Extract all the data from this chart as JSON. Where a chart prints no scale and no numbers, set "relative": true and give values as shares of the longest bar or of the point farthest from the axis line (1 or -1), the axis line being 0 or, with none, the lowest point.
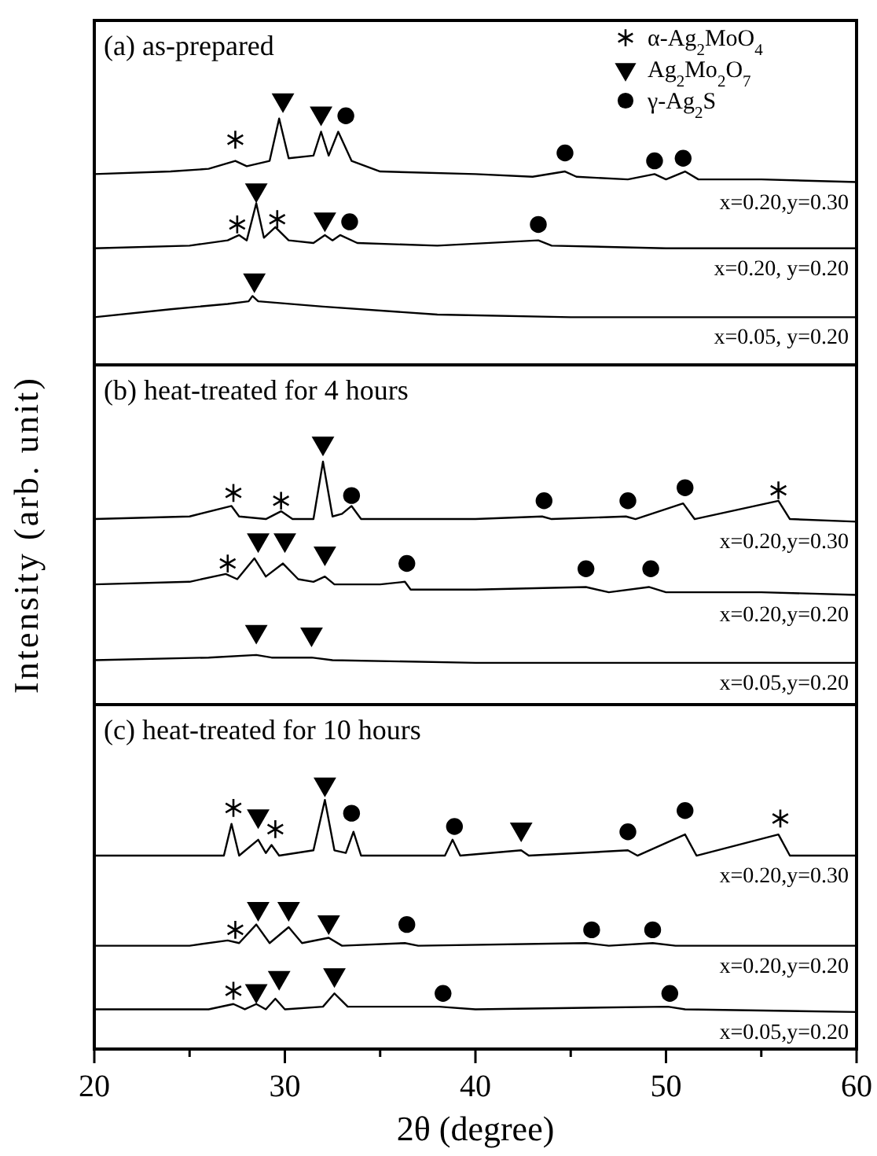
{
  "chart_data": [
    {
      "type": "line",
      "title": "(a) as-prepared",
      "relative": true,
      "xlim": [
        20,
        60
      ],
      "legend": "top right",
      "series": [
        {
          "name": "x=0.20,y=0.30",
          "color": "#000000",
          "x": [
            20,
            24,
            26,
            27.4,
            28,
            29.2,
            29.7,
            30.2,
            31.5,
            31.9,
            32.3,
            32.8,
            33.5,
            35,
            40,
            43,
            44.7,
            45.3,
            48,
            49.4,
            50,
            51,
            51.7,
            55,
            60
          ],
          "values": [
            0.72,
            0.73,
            0.74,
            0.77,
            0.75,
            0.77,
            0.93,
            0.78,
            0.79,
            0.88,
            0.79,
            0.88,
            0.77,
            0.73,
            0.72,
            0.71,
            0.73,
            0.71,
            0.7,
            0.72,
            0.7,
            0.73,
            0.7,
            0.7,
            0.69
          ]
        },
        {
          "name": "x=0.20, y=0.20",
          "color": "#000000",
          "x": [
            20,
            25,
            27,
            27.6,
            28,
            28.5,
            28.9,
            29.5,
            30.2,
            31.5,
            32.1,
            32.5,
            32.9,
            33.8,
            38,
            43.3,
            44,
            50,
            60
          ],
          "values": [
            0.44,
            0.45,
            0.47,
            0.49,
            0.47,
            0.61,
            0.48,
            0.52,
            0.47,
            0.46,
            0.49,
            0.47,
            0.49,
            0.46,
            0.45,
            0.47,
            0.45,
            0.44,
            0.44
          ]
        },
        {
          "name": "x=0.05, y=0.20",
          "color": "#000000",
          "x": [
            20,
            24,
            27,
            28.1,
            28.3,
            28.6,
            32,
            38,
            45,
            60
          ],
          "values": [
            0.18,
            0.21,
            0.23,
            0.24,
            0.26,
            0.24,
            0.22,
            0.19,
            0.18,
            0.18
          ]
        },
        {
          "name": "α-Ag$_{2}$MoO$_{4}$",
          "type": "scatter",
          "color": "#000000",
          "marker": "cross",
          "x": [
            27.4,
            27.5,
            29.6
          ],
          "values": [
            0.85,
            0.53,
            0.55
          ]
        },
        {
          "name": "Ag$_{2}$Mo$_{2}$O$_{7}$",
          "type": "scatter",
          "color": "#000000",
          "marker": "triangle",
          "x": [
            29.9,
            31.9,
            28.5,
            32.1,
            28.4
          ],
          "values": [
            1.0,
            0.95,
            0.66,
            0.55,
            0.32
          ]
        },
        {
          "name": "γ-Ag$_{2}$S",
          "type": "scatter",
          "color": "#000000",
          "marker": "circle",
          "x": [
            33.2,
            44.7,
            49.4,
            50.9,
            33.4,
            43.3
          ],
          "values": [
            0.94,
            0.8,
            0.77,
            0.78,
            0.54,
            0.53
          ]
        }
      ]
    },
    {
      "type": "line",
      "title": "(b) heat-treated for 4 hours",
      "ylabel": "Intensity (arb. unit)",
      "relative": true,
      "xlim": [
        20,
        60
      ],
      "series": [
        {
          "name": "x=0.20,y=0.30",
          "color": "#000000",
          "x": [
            20,
            25,
            27.2,
            27.6,
            29.0,
            29.8,
            30.4,
            31.5,
            32.0,
            32.5,
            33,
            33.5,
            34,
            40,
            43.5,
            44,
            47.9,
            48.4,
            50.9,
            51.5,
            55.9,
            56.5,
            60
          ],
          "values": [
            0.71,
            0.72,
            0.76,
            0.72,
            0.71,
            0.74,
            0.71,
            0.71,
            0.93,
            0.72,
            0.73,
            0.76,
            0.71,
            0.71,
            0.72,
            0.71,
            0.72,
            0.71,
            0.77,
            0.71,
            0.78,
            0.71,
            0.7
          ]
        },
        {
          "name": "x=0.20,y=0.20",
          "color": "#000000",
          "x": [
            20,
            25,
            26.9,
            27.5,
            28.4,
            29.0,
            29.9,
            30.7,
            31.5,
            32.1,
            32.6,
            35,
            36.3,
            36.6,
            40,
            45.8,
            47,
            49.1,
            50,
            55,
            60
          ],
          "values": [
            0.46,
            0.47,
            0.5,
            0.48,
            0.56,
            0.49,
            0.54,
            0.48,
            0.47,
            0.49,
            0.46,
            0.46,
            0.47,
            0.44,
            0.44,
            0.45,
            0.43,
            0.45,
            0.43,
            0.43,
            0.42
          ]
        },
        {
          "name": "x=0.05,y=0.20",
          "color": "#000000",
          "x": [
            20,
            26,
            28.5,
            29.3,
            31.4,
            32.5,
            40,
            60
          ],
          "values": [
            0.17,
            0.18,
            0.19,
            0.18,
            0.18,
            0.17,
            0.16,
            0.16
          ]
        },
        {
          "type": "scatter",
          "color": "#000000",
          "marker": "cross",
          "x": [
            27.3,
            29.8,
            55.9,
            27.0
          ],
          "values": [
            0.81,
            0.78,
            0.82,
            0.54
          ]
        },
        {
          "type": "scatter",
          "color": "#000000",
          "marker": "triangle",
          "x": [
            32.0,
            28.6,
            30.0,
            32.1,
            28.5,
            31.4
          ],
          "values": [
            1.0,
            0.63,
            0.63,
            0.58,
            0.28,
            0.27
          ]
        },
        {
          "type": "scatter",
          "color": "#000000",
          "marker": "circle",
          "x": [
            33.5,
            43.6,
            48.0,
            51.0,
            36.4,
            45.8,
            49.2
          ],
          "values": [
            0.8,
            0.78,
            0.78,
            0.83,
            0.54,
            0.52,
            0.52
          ]
        }
      ]
    },
    {
      "type": "line",
      "title": "(c) heat-treated for 10 hours",
      "xlabel": "2θ (degree)",
      "relative": true,
      "xlim": [
        20,
        60
      ],
      "tick_labels": "x",
      "xticks": [
        20,
        {
          "value": 25,
          "label": null
        },
        30,
        {
          "value": 35,
          "label": null
        },
        40,
        {
          "value": 45,
          "label": null
        },
        50,
        {
          "value": 55,
          "label": null
        },
        60
      ],
      "series": [
        {
          "name": "x=0.20,y=0.30",
          "color": "#000000",
          "x": [
            20,
            25,
            26.8,
            27.2,
            27.6,
            28.6,
            29.0,
            29.3,
            29.7,
            31.5,
            32.1,
            32.6,
            33.2,
            33.6,
            34,
            38.4,
            38.8,
            39.2,
            42.4,
            42.8,
            48.0,
            48.5,
            51.0,
            51.6,
            55.9,
            56.5,
            60
          ],
          "values": [
            0.73,
            0.73,
            0.73,
            0.85,
            0.73,
            0.79,
            0.74,
            0.77,
            0.73,
            0.75,
            0.94,
            0.75,
            0.74,
            0.82,
            0.73,
            0.73,
            0.79,
            0.73,
            0.75,
            0.73,
            0.75,
            0.73,
            0.81,
            0.73,
            0.81,
            0.73,
            0.73
          ]
        },
        {
          "name": "x=0.20,y=0.20",
          "color": "#000000",
          "x": [
            20,
            25,
            27.0,
            27.6,
            28.5,
            29.2,
            30.2,
            30.9,
            32.3,
            33,
            36.3,
            37,
            45.8,
            47,
            49.3,
            50.5,
            60
          ],
          "values": [
            0.39,
            0.39,
            0.41,
            0.4,
            0.47,
            0.4,
            0.46,
            0.4,
            0.42,
            0.39,
            0.4,
            0.39,
            0.4,
            0.39,
            0.4,
            0.39,
            0.39
          ]
        },
        {
          "name": "x=0.05,y=0.20",
          "color": "#000000",
          "x": [
            20,
            26,
            27.3,
            27.9,
            28.5,
            29.0,
            29.5,
            30,
            32.0,
            32.6,
            33.3,
            38.1,
            40,
            50.1,
            51,
            60
          ],
          "values": [
            0.15,
            0.15,
            0.17,
            0.15,
            0.17,
            0.15,
            0.19,
            0.15,
            0.16,
            0.21,
            0.16,
            0.16,
            0.15,
            0.16,
            0.15,
            0.14
          ]
        },
        {
          "type": "scatter",
          "color": "#000000",
          "marker": "cross",
          "x": [
            27.3,
            29.5,
            56.0,
            27.4,
            27.3
          ],
          "values": [
            0.91,
            0.83,
            0.87,
            0.45,
            0.22
          ]
        },
        {
          "type": "scatter",
          "color": "#000000",
          "marker": "triangle",
          "x": [
            32.1,
            28.6,
            42.4,
            28.6,
            30.2,
            32.3,
            28.5,
            29.7,
            32.6
          ],
          "values": [
            1.0,
            0.88,
            0.83,
            0.53,
            0.53,
            0.48,
            0.22,
            0.27,
            0.28
          ]
        },
        {
          "type": "scatter",
          "color": "#000000",
          "marker": "circle",
          "x": [
            33.5,
            38.9,
            48.0,
            51.0,
            36.4,
            46.1,
            49.3,
            38.3,
            50.2
          ],
          "values": [
            0.89,
            0.84,
            0.82,
            0.9,
            0.47,
            0.45,
            0.45,
            0.21,
            0.21
          ]
        }
      ]
    }
  ]
}
